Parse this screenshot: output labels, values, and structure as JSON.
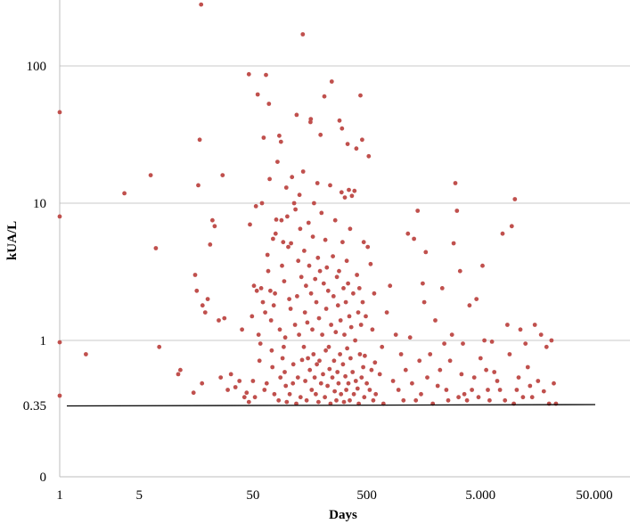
{
  "chart_data": {
    "type": "scatter",
    "title": "",
    "xlabel": "Days",
    "ylabel": "kUA/L",
    "x_scale": "log",
    "y_scale": "log",
    "xlim": [
      1,
      50000
    ],
    "x_ticks": [
      {
        "value": 1,
        "label": "1"
      },
      {
        "value": 5,
        "label": "5"
      },
      {
        "value": 50,
        "label": "50"
      },
      {
        "value": 500,
        "label": "500"
      },
      {
        "value": 5000,
        "label": "5.000"
      },
      {
        "value": 50000,
        "label": "50.000"
      }
    ],
    "y_ticks": [
      {
        "value": 0.2,
        "label": "0"
      },
      {
        "value": 0.35,
        "label": "0.35"
      },
      {
        "value": 1,
        "label": "1"
      },
      {
        "value": 10,
        "label": "10"
      },
      {
        "value": 100,
        "label": "100"
      }
    ],
    "gridlines": [
      1,
      10,
      100
    ],
    "threshold": 0.35,
    "colors": {
      "points": "#c0504d",
      "threshold": "#000000",
      "grid": "#c8c8c8"
    },
    "series": [
      {
        "points": [
          [
            1,
            46
          ],
          [
            1,
            8
          ],
          [
            1,
            0.97
          ],
          [
            1,
            0.41
          ],
          [
            1.7,
            0.8
          ],
          [
            3.7,
            11.8
          ],
          [
            6.3,
            16
          ],
          [
            7,
            4.7
          ],
          [
            7.5,
            0.9
          ],
          [
            11,
            0.58
          ],
          [
            11.5,
            0.62
          ],
          [
            15,
            0.43
          ],
          [
            15.5,
            3
          ],
          [
            16,
            2.3
          ],
          [
            16.5,
            13.5
          ],
          [
            17,
            29
          ],
          [
            17.5,
            280
          ],
          [
            17.8,
            0.5
          ],
          [
            18,
            1.8
          ],
          [
            19,
            1.6
          ],
          [
            20,
            2
          ],
          [
            21,
            5
          ],
          [
            22,
            7.5
          ],
          [
            23,
            6.8
          ],
          [
            25,
            1.4
          ],
          [
            26,
            0.55
          ],
          [
            27,
            16
          ],
          [
            28,
            1.45
          ],
          [
            30,
            0.45
          ],
          [
            32,
            0.58
          ],
          [
            35,
            0.47
          ],
          [
            38,
            0.52
          ],
          [
            40,
            1.2
          ],
          [
            42,
            0.4
          ],
          [
            44,
            0.43
          ],
          [
            46,
            0.37
          ],
          [
            46,
            87
          ],
          [
            47,
            7
          ],
          [
            49,
            1.5
          ],
          [
            50,
            0.52
          ],
          [
            51,
            2.5
          ],
          [
            52,
            0.4
          ],
          [
            53,
            9.5
          ],
          [
            54,
            2.3
          ],
          [
            55,
            62
          ],
          [
            56,
            1.1
          ],
          [
            57,
            0.72
          ],
          [
            58,
            0.95
          ],
          [
            59,
            2.4
          ],
          [
            60,
            10
          ],
          [
            61,
            1.9
          ],
          [
            62,
            30
          ],
          [
            63,
            0.45
          ],
          [
            64,
            1.6
          ],
          [
            65,
            86
          ],
          [
            66,
            0.5
          ],
          [
            67,
            4.2
          ],
          [
            68,
            3.2
          ],
          [
            69,
            53
          ],
          [
            70,
            15
          ],
          [
            71,
            2.3
          ],
          [
            72,
            1.4
          ],
          [
            73,
            0.85
          ],
          [
            74,
            0.65
          ],
          [
            75,
            5.5
          ],
          [
            76,
            1.8
          ],
          [
            77,
            0.42
          ],
          [
            78,
            2.2
          ],
          [
            79,
            6
          ],
          [
            80,
            7.6
          ],
          [
            82,
            20
          ],
          [
            84,
            0.38
          ],
          [
            85,
            31
          ],
          [
            86,
            1.2
          ],
          [
            87,
            0.55
          ],
          [
            88,
            28
          ],
          [
            89,
            7.5
          ],
          [
            90,
            3.5
          ],
          [
            91,
            0.75
          ],
          [
            92,
            5.2
          ],
          [
            93,
            0.9
          ],
          [
            94,
            2.7
          ],
          [
            95,
            0.6
          ],
          [
            96,
            1.05
          ],
          [
            97,
            0.48
          ],
          [
            98,
            13
          ],
          [
            99,
            0.37
          ],
          [
            100,
            8
          ],
          [
            102,
            4.8
          ],
          [
            104,
            2
          ],
          [
            105,
            0.42
          ],
          [
            107,
            1.7
          ],
          [
            108,
            5.1
          ],
          [
            110,
            15.5
          ],
          [
            112,
            0.5
          ],
          [
            113,
            0.68
          ],
          [
            115,
            10
          ],
          [
            117,
            1.3
          ],
          [
            118,
            9
          ],
          [
            120,
            0.36
          ],
          [
            121,
            44
          ],
          [
            122,
            2.1
          ],
          [
            124,
            0.55
          ],
          [
            125,
            3.8
          ],
          [
            127,
            1.1
          ],
          [
            128,
            11.5
          ],
          [
            130,
            6.5
          ],
          [
            131,
            0.4
          ],
          [
            133,
            2.9
          ],
          [
            135,
            0.73
          ],
          [
            137,
            170
          ],
          [
            138,
            17
          ],
          [
            140,
            0.9
          ],
          [
            141,
            4.5
          ],
          [
            143,
            1.6
          ],
          [
            144,
            0.52
          ],
          [
            146,
            2.5
          ],
          [
            148,
            0.38
          ],
          [
            150,
            1.35
          ],
          [
            152,
            0.75
          ],
          [
            154,
            7.2
          ],
          [
            156,
            3.5
          ],
          [
            158,
            0.62
          ],
          [
            160,
            39
          ],
          [
            161,
            41
          ],
          [
            162,
            2.2
          ],
          [
            164,
            0.45
          ],
          [
            166,
            1.2
          ],
          [
            168,
            5.7
          ],
          [
            170,
            0.8
          ],
          [
            172,
            10
          ],
          [
            174,
            0.55
          ],
          [
            176,
            2.8
          ],
          [
            178,
            0.42
          ],
          [
            180,
            1.9
          ],
          [
            182,
            0.68
          ],
          [
            184,
            14
          ],
          [
            186,
            4
          ],
          [
            188,
            0.37
          ],
          [
            190,
            1.45
          ],
          [
            192,
            0.72
          ],
          [
            194,
            3.2
          ],
          [
            196,
            31.5
          ],
          [
            198,
            0.5
          ],
          [
            200,
            8.5
          ],
          [
            203,
            1.1
          ],
          [
            206,
            0.58
          ],
          [
            209,
            2.6
          ],
          [
            212,
            60
          ],
          [
            214,
            0.4
          ],
          [
            216,
            5.4
          ],
          [
            218,
            0.85
          ],
          [
            220,
            1.7
          ],
          [
            223,
            3.4
          ],
          [
            226,
            0.48
          ],
          [
            229,
            2.3
          ],
          [
            232,
            0.9
          ],
          [
            235,
            0.63
          ],
          [
            238,
            13.5
          ],
          [
            240,
            0.36
          ],
          [
            243,
            1.3
          ],
          [
            246,
            77
          ],
          [
            249,
            0.55
          ],
          [
            252,
            4.1
          ],
          [
            255,
            2.1
          ],
          [
            258,
            0.72
          ],
          [
            261,
            0.44
          ],
          [
            264,
            7.5
          ],
          [
            267,
            1.15
          ],
          [
            270,
            0.38
          ],
          [
            273,
            2.9
          ],
          [
            276,
            0.6
          ],
          [
            279,
            1.8
          ],
          [
            282,
            0.5
          ],
          [
            285,
            3.2
          ],
          [
            288,
            40
          ],
          [
            291,
            0.8
          ],
          [
            294,
            1.4
          ],
          [
            297,
            0.42
          ],
          [
            300,
            12
          ],
          [
            303,
            35
          ],
          [
            306,
            5.2
          ],
          [
            309,
            0.68
          ],
          [
            312,
            2.4
          ],
          [
            315,
            0.37
          ],
          [
            318,
            1.1
          ],
          [
            321,
            11
          ],
          [
            324,
            0.56
          ],
          [
            327,
            1.9
          ],
          [
            330,
            0.45
          ],
          [
            333,
            3.8
          ],
          [
            336,
            0.88
          ],
          [
            339,
            27
          ],
          [
            342,
            2.6
          ],
          [
            345,
            0.5
          ],
          [
            348,
            12.5
          ],
          [
            351,
            1.5
          ],
          [
            354,
            0.38
          ],
          [
            357,
            6.5
          ],
          [
            360,
            0.75
          ],
          [
            365,
            1.25
          ],
          [
            370,
            11.3
          ],
          [
            375,
            0.6
          ],
          [
            380,
            2.2
          ],
          [
            385,
            0.42
          ],
          [
            390,
            12.3
          ],
          [
            395,
            1
          ],
          [
            400,
            0.52
          ],
          [
            405,
            25
          ],
          [
            410,
            3
          ],
          [
            415,
            0.46
          ],
          [
            420,
            1.6
          ],
          [
            425,
            0.36
          ],
          [
            430,
            2.4
          ],
          [
            435,
            0.8
          ],
          [
            440,
            61
          ],
          [
            445,
            1.3
          ],
          [
            450,
            0.55
          ],
          [
            455,
            29
          ],
          [
            460,
            1.9
          ],
          [
            465,
            0.65
          ],
          [
            470,
            5.2
          ],
          [
            475,
            0.4
          ],
          [
            480,
            0.78
          ],
          [
            490,
            1.5
          ],
          [
            500,
            0.5
          ],
          [
            510,
            4.8
          ],
          [
            520,
            22
          ],
          [
            530,
            0.45
          ],
          [
            540,
            3.6
          ],
          [
            550,
            0.62
          ],
          [
            560,
            1.2
          ],
          [
            570,
            0.38
          ],
          [
            580,
            2.2
          ],
          [
            590,
            0.7
          ],
          [
            600,
            0.42
          ],
          [
            650,
            0.58
          ],
          [
            680,
            0.9
          ],
          [
            700,
            0.36
          ],
          [
            750,
            1.6
          ],
          [
            800,
            2.5
          ],
          [
            850,
            0.52
          ],
          [
            900,
            1.1
          ],
          [
            950,
            0.45
          ],
          [
            1000,
            0.8
          ],
          [
            1050,
            0.38
          ],
          [
            1100,
            0.62
          ],
          [
            1150,
            6
          ],
          [
            1200,
            1.05
          ],
          [
            1250,
            0.5
          ],
          [
            1300,
            5.5
          ],
          [
            1350,
            0.38
          ],
          [
            1400,
            8.8
          ],
          [
            1450,
            0.72
          ],
          [
            1500,
            0.42
          ],
          [
            1550,
            2.6
          ],
          [
            1600,
            1.9
          ],
          [
            1650,
            4.4
          ],
          [
            1700,
            0.55
          ],
          [
            1800,
            0.8
          ],
          [
            1900,
            0.36
          ],
          [
            2000,
            1.4
          ],
          [
            2100,
            0.48
          ],
          [
            2200,
            0.62
          ],
          [
            2300,
            2.4
          ],
          [
            2400,
            0.95
          ],
          [
            2500,
            0.45
          ],
          [
            2600,
            0.38
          ],
          [
            2700,
            0.72
          ],
          [
            2800,
            1.1
          ],
          [
            2900,
            5.1
          ],
          [
            3000,
            14
          ],
          [
            3100,
            8.8
          ],
          [
            3200,
            0.4
          ],
          [
            3300,
            3.2
          ],
          [
            3400,
            0.58
          ],
          [
            3500,
            0.95
          ],
          [
            3600,
            0.42
          ],
          [
            3800,
            0.38
          ],
          [
            4000,
            1.8
          ],
          [
            4200,
            0.45
          ],
          [
            4400,
            0.55
          ],
          [
            4600,
            2
          ],
          [
            4800,
            0.4
          ],
          [
            5000,
            0.75
          ],
          [
            5200,
            3.5
          ],
          [
            5400,
            1
          ],
          [
            5600,
            0.62
          ],
          [
            5800,
            0.45
          ],
          [
            6000,
            0.38
          ],
          [
            6300,
            0.98
          ],
          [
            6600,
            0.6
          ],
          [
            7000,
            0.52
          ],
          [
            7400,
            0.45
          ],
          [
            7800,
            6
          ],
          [
            8200,
            0.38
          ],
          [
            8600,
            1.3
          ],
          [
            9000,
            0.8
          ],
          [
            9400,
            6.8
          ],
          [
            9800,
            0.36
          ],
          [
            10000,
            10.7
          ],
          [
            10400,
            0.45
          ],
          [
            10800,
            0.55
          ],
          [
            11200,
            1.2
          ],
          [
            11800,
            0.4
          ],
          [
            12400,
            0.95
          ],
          [
            13000,
            0.65
          ],
          [
            13600,
            0.48
          ],
          [
            14200,
            0.4
          ],
          [
            15000,
            1.3
          ],
          [
            16000,
            0.52
          ],
          [
            17000,
            1.1
          ],
          [
            18000,
            0.44
          ],
          [
            19000,
            0.9
          ],
          [
            20000,
            0.36
          ],
          [
            21000,
            1
          ],
          [
            22000,
            0.5
          ],
          [
            23000,
            0.36
          ]
        ]
      }
    ]
  }
}
